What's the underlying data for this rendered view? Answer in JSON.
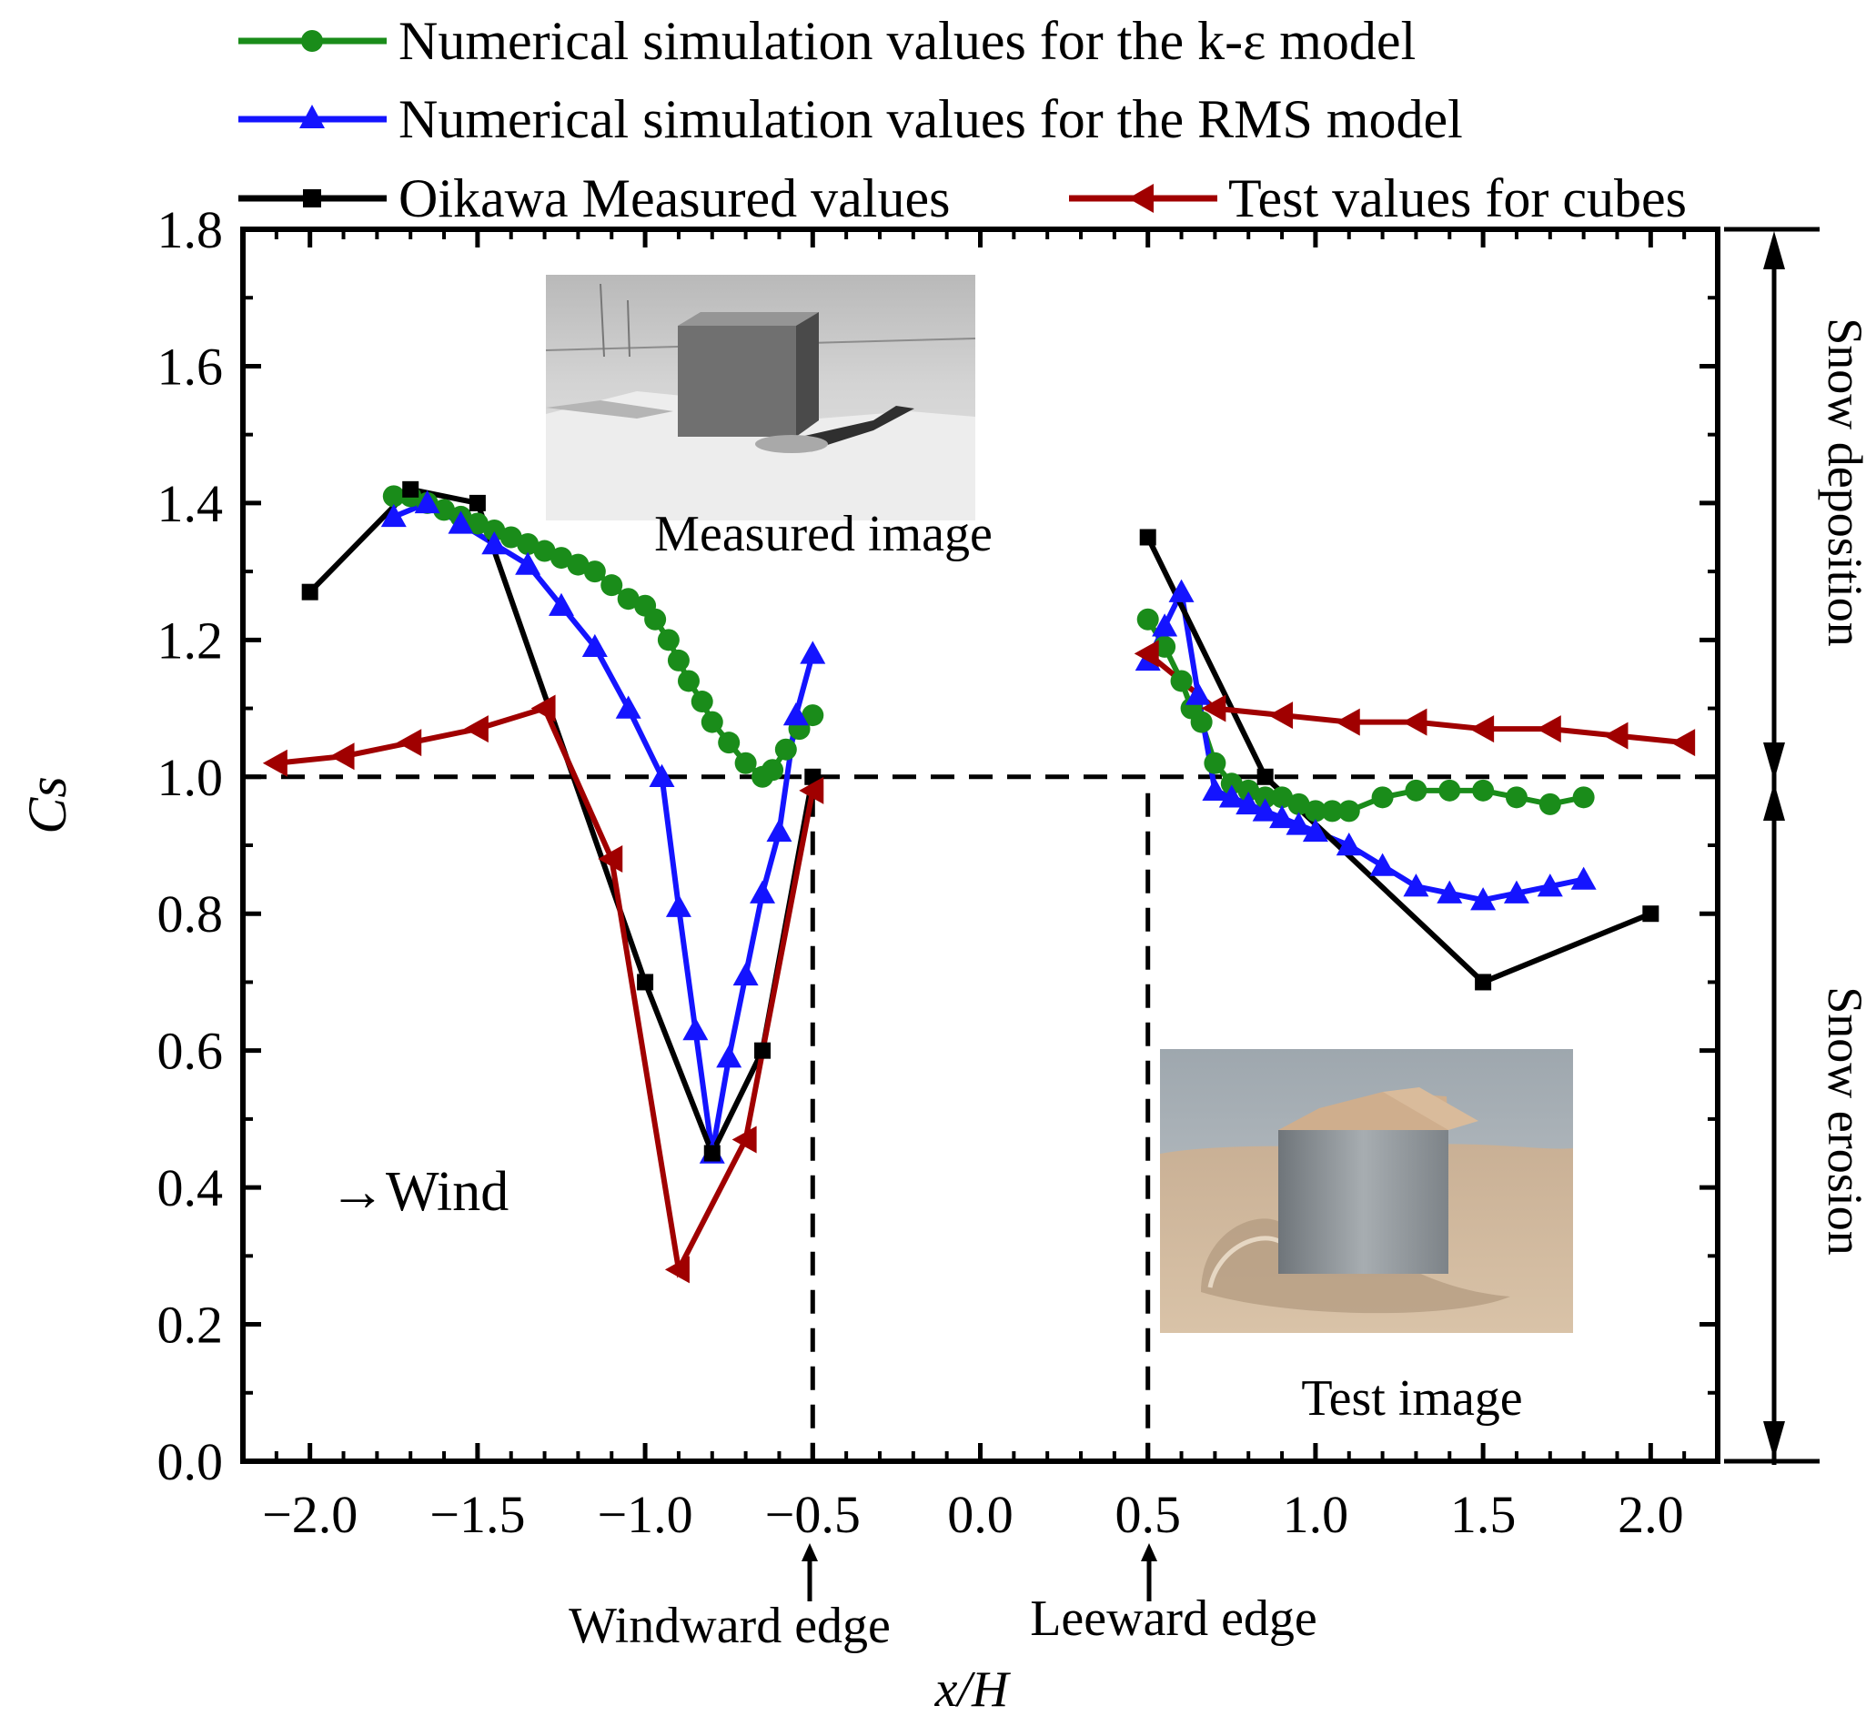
{
  "chart_data": {
    "type": "line",
    "xlabel": "x/H",
    "ylabel": "Cs",
    "xlim": [
      -2.2,
      2.2
    ],
    "ylim": [
      0.0,
      1.8
    ],
    "x_ticks": [
      -2.0,
      -1.5,
      -1.0,
      -0.5,
      0.0,
      0.5,
      1.0,
      1.5,
      2.0
    ],
    "x_tick_labels": [
      "−2.0",
      "−1.5",
      "−1.0",
      "−0.5",
      "0.0",
      "0.5",
      "1.0",
      "1.5",
      "2.0"
    ],
    "y_ticks": [
      0.0,
      0.2,
      0.4,
      0.6,
      0.8,
      1.0,
      1.2,
      1.4,
      1.6,
      1.8
    ],
    "y_tick_labels": [
      "0.0",
      "0.2",
      "0.4",
      "0.6",
      "0.8",
      "1.0",
      "1.2",
      "1.4",
      "1.6",
      "1.8"
    ],
    "reference_line_y": 1.0,
    "edge_lines_x": [
      -0.5,
      0.5
    ],
    "series": [
      {
        "name": "Numerical simulation values for the k-ε model",
        "color": "#1a8c1a",
        "marker": "circle",
        "segments": [
          {
            "x": [
              -1.75,
              -1.7,
              -1.65,
              -1.6,
              -1.55,
              -1.5,
              -1.45,
              -1.4,
              -1.35,
              -1.3,
              -1.25,
              -1.2,
              -1.15,
              -1.1,
              -1.05,
              -1.0,
              -0.97,
              -0.93,
              -0.9,
              -0.87,
              -0.83,
              -0.8,
              -0.75,
              -0.7,
              -0.65,
              -0.62,
              -0.58,
              -0.54,
              -0.5
            ],
            "y": [
              1.41,
              1.41,
              1.4,
              1.39,
              1.38,
              1.37,
              1.36,
              1.35,
              1.34,
              1.33,
              1.32,
              1.31,
              1.3,
              1.28,
              1.26,
              1.25,
              1.23,
              1.2,
              1.17,
              1.14,
              1.11,
              1.08,
              1.05,
              1.02,
              1.0,
              1.01,
              1.04,
              1.07,
              1.09
            ]
          },
          {
            "x": [
              0.5,
              0.55,
              0.6,
              0.63,
              0.66,
              0.7,
              0.75,
              0.8,
              0.85,
              0.9,
              0.95,
              1.0,
              1.05,
              1.1,
              1.2,
              1.3,
              1.4,
              1.5,
              1.6,
              1.7,
              1.8
            ],
            "y": [
              1.23,
              1.19,
              1.14,
              1.1,
              1.08,
              1.02,
              0.99,
              0.98,
              0.97,
              0.97,
              0.96,
              0.95,
              0.95,
              0.95,
              0.97,
              0.98,
              0.98,
              0.98,
              0.97,
              0.96,
              0.97
            ]
          }
        ]
      },
      {
        "name": "Numerical simulation values for the RMS model",
        "color": "#1414ff",
        "marker": "triangle-up",
        "segments": [
          {
            "x": [
              -1.75,
              -1.65,
              -1.55,
              -1.45,
              -1.35,
              -1.25,
              -1.15,
              -1.05,
              -0.95,
              -0.9,
              -0.85,
              -0.8,
              -0.75,
              -0.7,
              -0.65,
              -0.6,
              -0.55,
              -0.5
            ],
            "y": [
              1.38,
              1.4,
              1.37,
              1.34,
              1.31,
              1.25,
              1.19,
              1.1,
              1.0,
              0.81,
              0.63,
              0.45,
              0.59,
              0.71,
              0.83,
              0.92,
              1.09,
              1.18
            ]
          },
          {
            "x": [
              0.5,
              0.55,
              0.6,
              0.65,
              0.7,
              0.75,
              0.8,
              0.85,
              0.9,
              0.95,
              1.0,
              1.1,
              1.2,
              1.3,
              1.4,
              1.5,
              1.6,
              1.7,
              1.8
            ],
            "y": [
              1.17,
              1.22,
              1.27,
              1.12,
              0.98,
              0.97,
              0.96,
              0.95,
              0.94,
              0.93,
              0.92,
              0.9,
              0.87,
              0.84,
              0.83,
              0.82,
              0.83,
              0.84,
              0.85
            ]
          }
        ]
      },
      {
        "name": "Oikawa Measured values",
        "color": "#000000",
        "marker": "square",
        "segments": [
          {
            "x": [
              -2.0,
              -1.7,
              -1.5,
              -1.0,
              -0.8,
              -0.65,
              -0.5
            ],
            "y": [
              1.27,
              1.42,
              1.4,
              0.7,
              0.45,
              0.6,
              1.0
            ]
          },
          {
            "x": [
              0.5,
              0.85,
              1.5,
              2.0
            ],
            "y": [
              1.35,
              1.0,
              0.7,
              0.8
            ]
          }
        ]
      },
      {
        "name": "Test values for cubes",
        "color": "#a00000",
        "marker": "triangle-left",
        "segments": [
          {
            "x": [
              -2.1,
              -1.9,
              -1.7,
              -1.5,
              -1.3,
              -1.1,
              -0.9,
              -0.7,
              -0.5
            ],
            "y": [
              1.02,
              1.03,
              1.05,
              1.07,
              1.1,
              0.88,
              0.28,
              0.47,
              0.98
            ]
          },
          {
            "x": [
              0.5,
              0.7,
              0.9,
              1.1,
              1.3,
              1.5,
              1.7,
              1.9,
              2.1
            ],
            "y": [
              1.18,
              1.1,
              1.09,
              1.08,
              1.08,
              1.07,
              1.07,
              1.06,
              1.05
            ]
          }
        ]
      }
    ],
    "annotations": {
      "measured_image": "Measured image",
      "test_image": "Test image",
      "wind": "→Wind",
      "windward_edge": "Windward edge",
      "leeward_edge": "Leeward edge",
      "snow_deposition": "Snow deposition",
      "snow_erosion": "Snow erosion"
    }
  }
}
